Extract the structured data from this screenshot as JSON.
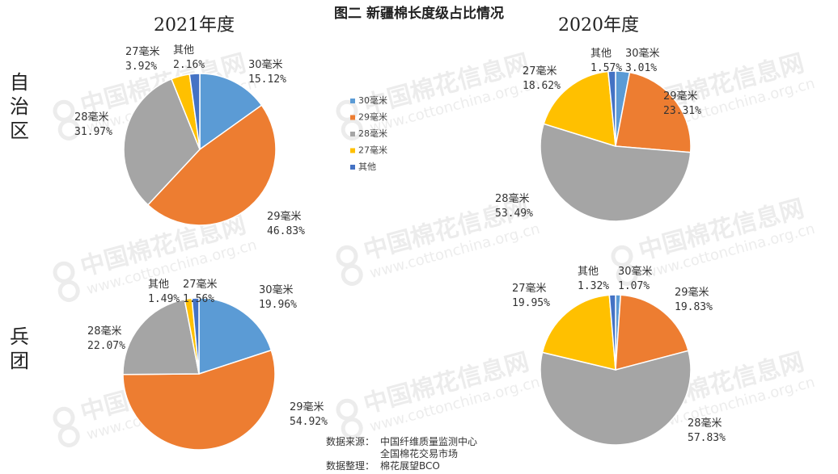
{
  "title": "图二 新疆棉长度级占比情况",
  "row_labels": {
    "top": "自治区",
    "bottom": "兵团"
  },
  "watermark": {
    "cn": "中国棉花信息网",
    "url": "www.cottonchina.org.cn"
  },
  "legend": {
    "items": [
      {
        "label": "30毫米",
        "color": "#5B9BD5"
      },
      {
        "label": "29毫米",
        "color": "#ED7D31"
      },
      {
        "label": "28毫米",
        "color": "#A5A5A5"
      },
      {
        "label": "27毫米",
        "color": "#FFC000"
      },
      {
        "label": "其他",
        "color": "#4472C4"
      }
    ]
  },
  "source": {
    "prefix1": "数据来源：",
    "line1": "中国纤维质量监测中心",
    "line2": "全国棉花交易市场",
    "prefix2": "数据整理：",
    "line3": "棉花展望BCO"
  },
  "chart_data": [
    {
      "type": "pie",
      "title": "2021年度",
      "row": "自治区",
      "categories": [
        "30毫米",
        "29毫米",
        "28毫米",
        "27毫米",
        "其他"
      ],
      "values": [
        15.12,
        46.83,
        31.97,
        3.92,
        2.16
      ],
      "labels": [
        "15.12%",
        "46.83%",
        "31.97%",
        "3.92%",
        "2.16%"
      ]
    },
    {
      "type": "pie",
      "title": "2020年度",
      "row": "自治区",
      "categories": [
        "30毫米",
        "29毫米",
        "28毫米",
        "27毫米",
        "其他"
      ],
      "values": [
        3.01,
        23.31,
        53.49,
        18.62,
        1.57
      ],
      "labels": [
        "3.01%",
        "23.31%",
        "53.49%",
        "18.62%",
        "1.57%"
      ]
    },
    {
      "type": "pie",
      "title": "",
      "row": "兵团",
      "categories": [
        "30毫米",
        "29毫米",
        "28毫米",
        "27毫米",
        "其他"
      ],
      "values": [
        19.96,
        54.92,
        22.07,
        1.56,
        1.49
      ],
      "labels": [
        "19.96%",
        "54.92%",
        "22.07%",
        "1.56%",
        "1.49%"
      ]
    },
    {
      "type": "pie",
      "title": "",
      "row": "兵团",
      "categories": [
        "30毫米",
        "29毫米",
        "28毫米",
        "27毫米",
        "其他"
      ],
      "values": [
        1.07,
        19.83,
        57.83,
        19.95,
        1.32
      ],
      "labels": [
        "1.07%",
        "19.83%",
        "57.83%",
        "19.95%",
        "1.32%"
      ]
    }
  ]
}
